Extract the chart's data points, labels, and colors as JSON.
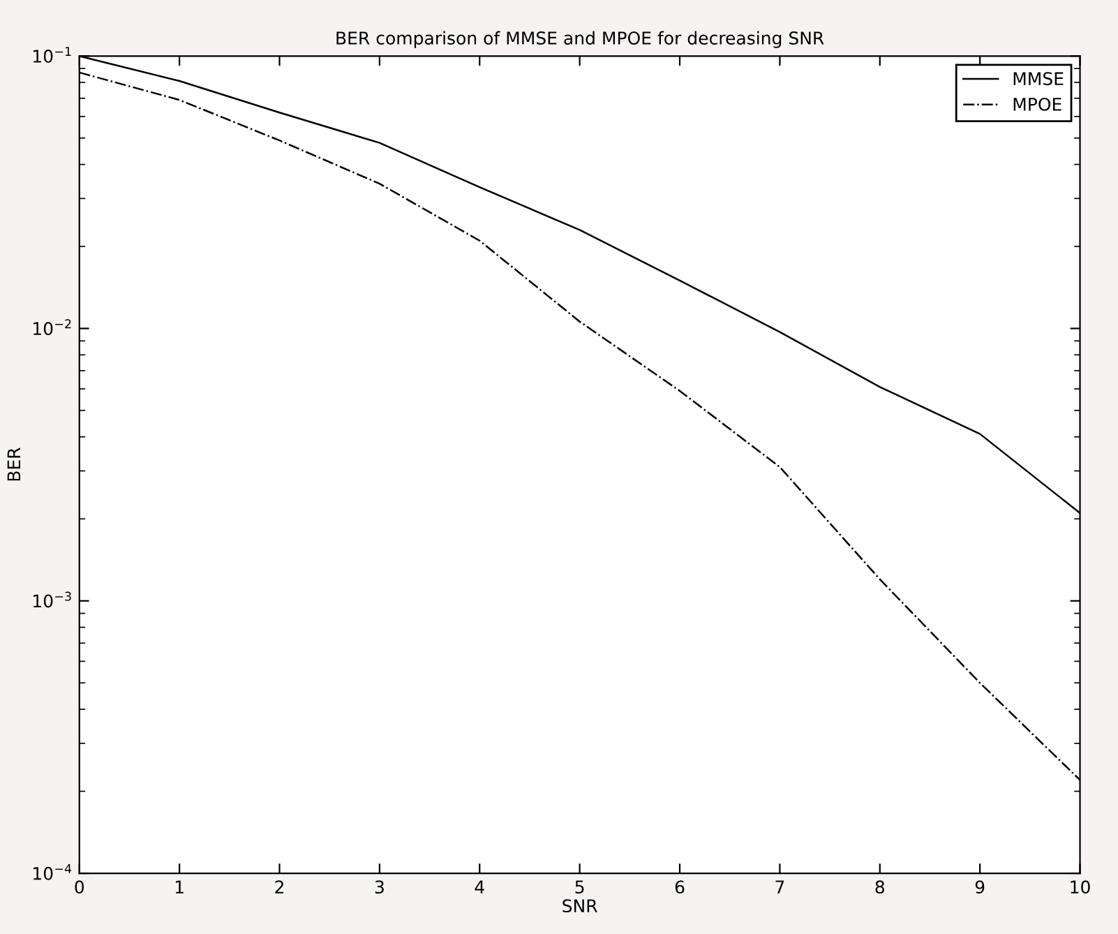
{
  "chart_data": {
    "type": "line",
    "title": "BER comparison of MMSE and MPOE for decreasing SNR",
    "xlabel": "SNR",
    "ylabel": "BER",
    "x": [
      0,
      1,
      2,
      3,
      4,
      5,
      6,
      7,
      8,
      9,
      10
    ],
    "series": [
      {
        "name": "MMSE",
        "color": "#000000",
        "line_style": "solid",
        "values": [
          0.1,
          0.081,
          0.062,
          0.048,
          0.033,
          0.023,
          0.015,
          0.0097,
          0.0061,
          0.0041,
          0.0021
        ]
      },
      {
        "name": "MPOE",
        "color": "#000000",
        "line_style": "dashdot",
        "values": [
          0.087,
          0.069,
          0.049,
          0.034,
          0.021,
          0.0106,
          0.0059,
          0.0031,
          0.0012,
          0.0005,
          0.00022
        ]
      }
    ],
    "log": "y",
    "xlim": [
      0,
      10
    ],
    "ylim": [
      0.0001,
      0.1
    ],
    "xticks": [
      0,
      1,
      2,
      3,
      4,
      5,
      6,
      7,
      8,
      9,
      10
    ],
    "yticks": [
      {
        "value": 0.0001,
        "label": "10$^{−4}$"
      },
      {
        "value": 0.001,
        "label": "10$^{−3}$"
      },
      {
        "value": 0.01,
        "label": "10$^{−2}$"
      },
      {
        "value": 0.1,
        "label": "10$^{−1}$"
      }
    ],
    "grid": false,
    "legend": "top right",
    "marker": "none"
  }
}
